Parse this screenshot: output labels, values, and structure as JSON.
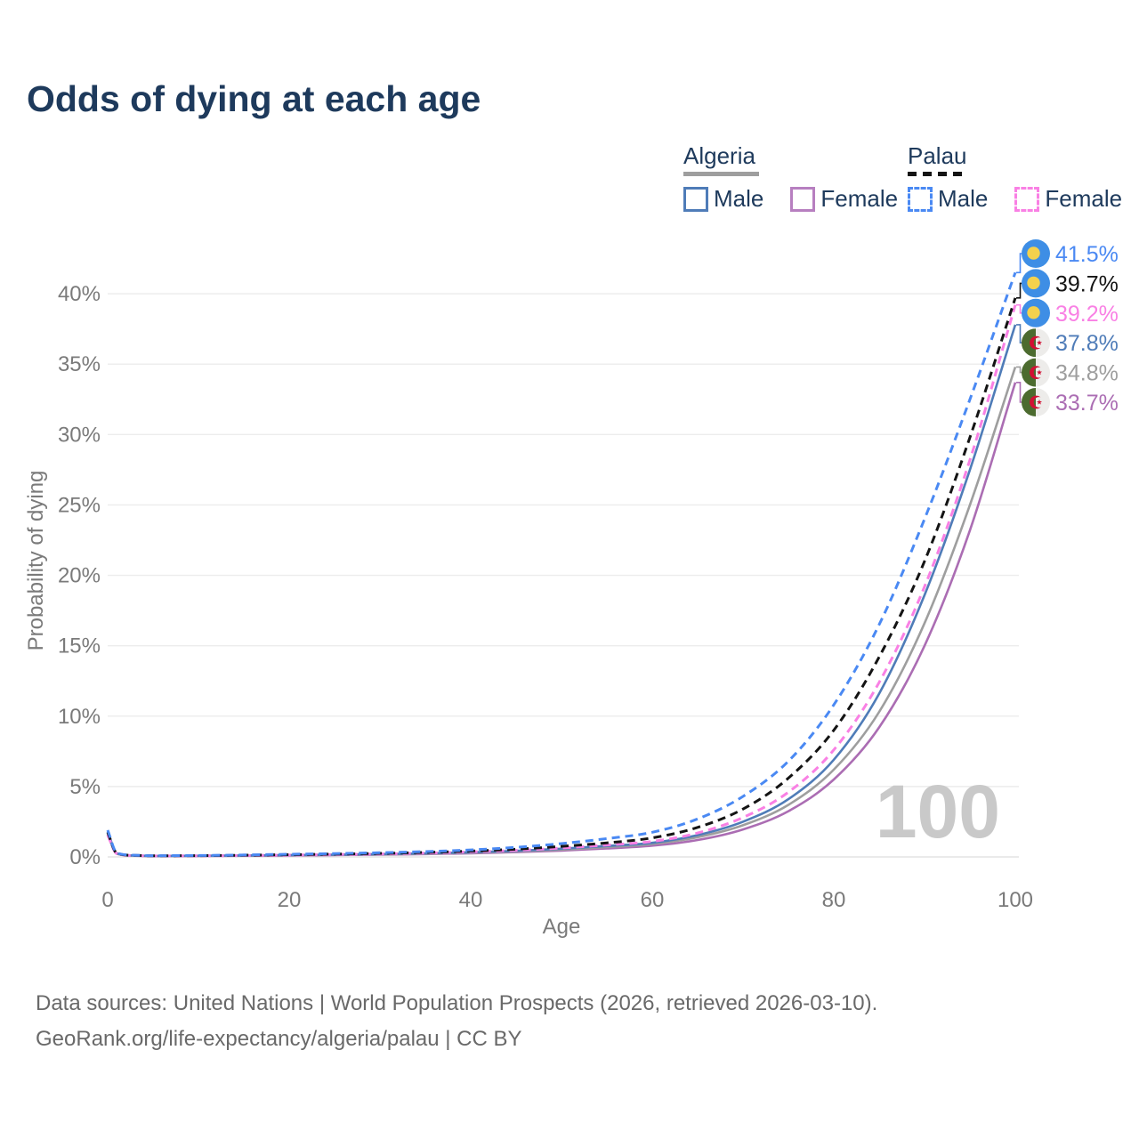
{
  "title": "Odds of dying at each age",
  "legend": {
    "groups": [
      {
        "title": "Algeria",
        "line_style": "solid",
        "underline_color": "#9e9e9e",
        "items": [
          {
            "label": "Male",
            "color": "#4f7cb8",
            "dash": false
          },
          {
            "label": "Female",
            "color": "#b77fc0",
            "dash": false
          }
        ]
      },
      {
        "title": "Palau",
        "line_style": "dashed",
        "underline_color": "#141414",
        "items": [
          {
            "label": "Male",
            "color": "#4a89f3",
            "dash": true
          },
          {
            "label": "Female",
            "color": "#f980e4",
            "dash": true
          }
        ]
      }
    ]
  },
  "chart_data": {
    "type": "line",
    "title": "Odds of dying at each age",
    "xlabel": "Age",
    "ylabel": "Probability of dying",
    "xlim": [
      0,
      100
    ],
    "ylim": [
      0,
      43
    ],
    "x_ticks": [
      0,
      20,
      40,
      60,
      80,
      100
    ],
    "y_ticks": [
      {
        "v": 0,
        "label": "0%"
      },
      {
        "v": 5,
        "label": "5%"
      },
      {
        "v": 10,
        "label": "10%"
      },
      {
        "v": 15,
        "label": "15%"
      },
      {
        "v": 20,
        "label": "20%"
      },
      {
        "v": 25,
        "label": "25%"
      },
      {
        "v": 30,
        "label": "30%"
      },
      {
        "v": 35,
        "label": "35%"
      },
      {
        "v": 40,
        "label": "40%"
      }
    ],
    "grid": "horizontal",
    "legend_position": "top-right",
    "watermark": "100",
    "x": [
      0,
      1,
      3,
      5,
      10,
      15,
      20,
      25,
      30,
      35,
      40,
      45,
      50,
      55,
      60,
      65,
      70,
      75,
      80,
      85,
      90,
      95,
      100
    ],
    "series": [
      {
        "name": "Palau Male",
        "country": "Palau",
        "sex": "male",
        "color": "#4a89f3",
        "dash": true,
        "flag": "palau",
        "end_label": "41.5%",
        "values": [
          1.9,
          0.3,
          0.12,
          0.09,
          0.1,
          0.14,
          0.19,
          0.24,
          0.3,
          0.38,
          0.5,
          0.68,
          0.95,
          1.3,
          1.75,
          2.7,
          4.3,
          6.8,
          10.8,
          16.5,
          24.0,
          32.5,
          41.5
        ]
      },
      {
        "name": "Palau Total",
        "country": "Palau",
        "sex": "all",
        "color": "#141414",
        "dash": true,
        "flag": "palau",
        "end_label": "39.7%",
        "values": [
          1.75,
          0.27,
          0.11,
          0.08,
          0.09,
          0.12,
          0.16,
          0.2,
          0.25,
          0.32,
          0.42,
          0.55,
          0.75,
          1.0,
          1.35,
          2.1,
          3.4,
          5.6,
          9.0,
          14.2,
          21.0,
          29.8,
          39.7
        ]
      },
      {
        "name": "Palau Female",
        "country": "Palau",
        "sex": "female",
        "color": "#f980e4",
        "dash": true,
        "flag": "palau",
        "end_label": "39.2%",
        "values": [
          1.55,
          0.24,
          0.1,
          0.07,
          0.08,
          0.1,
          0.13,
          0.17,
          0.21,
          0.27,
          0.36,
          0.47,
          0.63,
          0.85,
          1.1,
          1.7,
          2.8,
          4.6,
          7.6,
          12.4,
          19.2,
          28.2,
          39.2
        ]
      },
      {
        "name": "Algeria Male",
        "country": "Algeria",
        "sex": "male",
        "color": "#4f7cb8",
        "dash": false,
        "flag": "algeria",
        "end_label": "37.8%",
        "values": [
          1.8,
          0.26,
          0.1,
          0.07,
          0.08,
          0.1,
          0.13,
          0.16,
          0.2,
          0.25,
          0.33,
          0.43,
          0.58,
          0.78,
          1.0,
          1.55,
          2.5,
          4.1,
          6.9,
          11.6,
          18.6,
          27.5,
          37.8
        ]
      },
      {
        "name": "Algeria Total",
        "country": "Algeria",
        "sex": "all",
        "color": "#9e9e9e",
        "dash": false,
        "flag": "algeria",
        "end_label": "34.8%",
        "values": [
          1.7,
          0.24,
          0.09,
          0.065,
          0.075,
          0.09,
          0.12,
          0.15,
          0.18,
          0.23,
          0.3,
          0.39,
          0.52,
          0.7,
          0.92,
          1.4,
          2.25,
          3.7,
          6.2,
          10.3,
          16.6,
          25.0,
          34.8
        ]
      },
      {
        "name": "Algeria Female",
        "country": "Algeria",
        "sex": "female",
        "color": "#ab6db3",
        "dash": false,
        "flag": "algeria",
        "end_label": "33.7%",
        "values": [
          1.6,
          0.22,
          0.08,
          0.06,
          0.07,
          0.08,
          0.1,
          0.13,
          0.16,
          0.2,
          0.26,
          0.34,
          0.45,
          0.6,
          0.8,
          1.2,
          1.95,
          3.25,
          5.5,
          9.2,
          15.0,
          23.2,
          33.7
        ]
      }
    ],
    "flag_colors": {
      "palau": {
        "field": "#3e8ee5",
        "disc": "#f4d14d"
      },
      "algeria": {
        "green": "#4c6b2f",
        "white": "#edecea",
        "red": "#d21034"
      }
    }
  },
  "footer": {
    "line1": "Data sources: United Nations | World Population Prospects (2026, retrieved 2026-03-10).",
    "line2": "GeoRank.org/life-expectancy/algeria/palau | CC BY"
  }
}
